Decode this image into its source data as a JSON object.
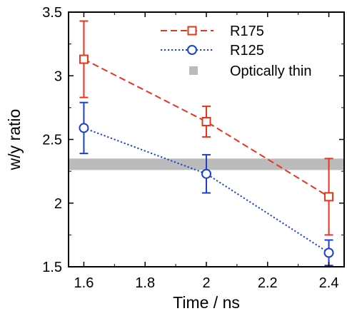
{
  "chart_data": {
    "type": "line",
    "title": "",
    "xlabel": "Time / ns",
    "ylabel": "w/y ratio",
    "xlim": [
      1.55,
      2.45
    ],
    "ylim": [
      1.5,
      3.5
    ],
    "xticks": [
      "1.6",
      "1.8",
      "2",
      "2.2",
      "2.4"
    ],
    "yticks": [
      "1.5",
      "2",
      "2.5",
      "3",
      "3.5"
    ],
    "legend_position": "top-right",
    "grid": false,
    "series": [
      {
        "name": "R175",
        "color": "#e8351c",
        "line_style": "dashed",
        "marker": "square",
        "x": [
          1.6,
          2.0,
          2.4
        ],
        "y": [
          3.13,
          2.64,
          2.05
        ],
        "err_low": [
          0.3,
          0.12,
          0.3
        ],
        "err_high": [
          0.3,
          0.12,
          0.3
        ]
      },
      {
        "name": "R125",
        "color": "#1c3fd6",
        "line_style": "dotted",
        "marker": "circle",
        "x": [
          1.6,
          2.0,
          2.4
        ],
        "y": [
          2.59,
          2.23,
          1.61
        ],
        "err_low": [
          0.2,
          0.15,
          0.1
        ],
        "err_high": [
          0.2,
          0.15,
          0.1
        ]
      }
    ],
    "band": {
      "name": "Optically thin",
      "color": "#bbbbbb",
      "y_low": 2.26,
      "y_high": 2.35
    }
  }
}
